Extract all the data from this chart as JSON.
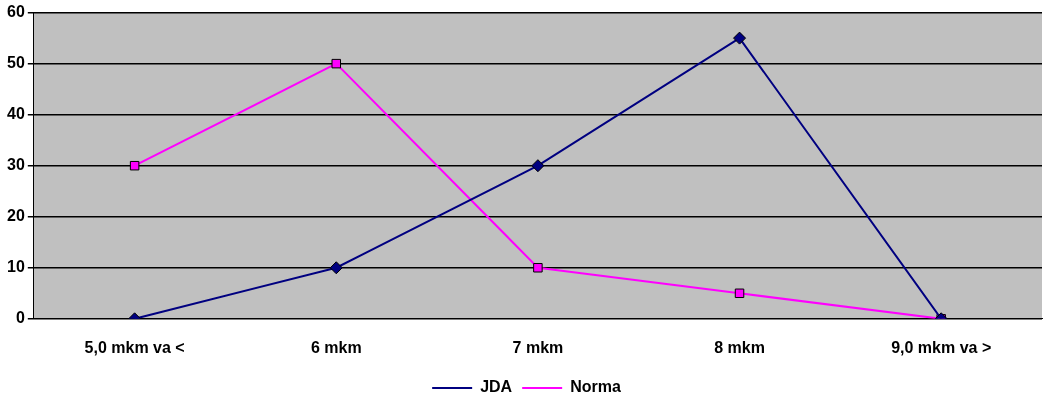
{
  "chart_data": {
    "type": "line",
    "categories": [
      "5,0 mkm va <",
      "6 mkm",
      "7 mkm",
      "8 mkm",
      "9,0 mkm va >"
    ],
    "series": [
      {
        "name": "JDA",
        "color": "#000080",
        "marker": "diamond",
        "values": [
          0,
          10,
          30,
          55,
          0
        ]
      },
      {
        "name": "Norma",
        "color": "#ff00ff",
        "marker": "square",
        "values": [
          30,
          50,
          10,
          5,
          0
        ]
      }
    ],
    "ylim": [
      0,
      60
    ],
    "yticks": [
      0,
      10,
      20,
      30,
      40,
      50,
      60
    ],
    "grid": "y",
    "legend": "bottom",
    "line_style": "solid"
  }
}
